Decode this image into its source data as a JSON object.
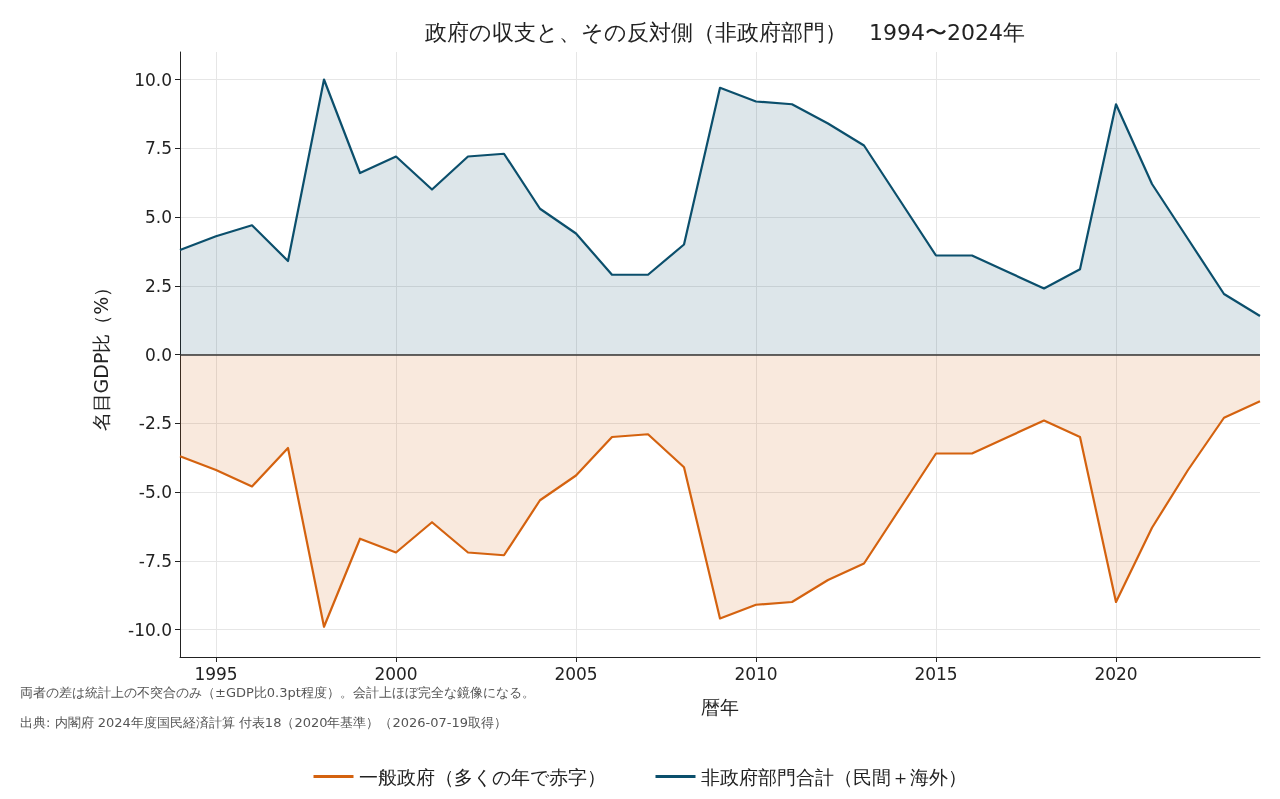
{
  "chart_data": {
    "type": "area",
    "title": "政府の収支と、その反対側（非政府部門）　1994〜2024年",
    "xlabel": "暦年",
    "ylabel": "名目GDP比（%）",
    "x": [
      1994,
      1995,
      1996,
      1997,
      1998,
      1999,
      2000,
      2001,
      2002,
      2003,
      2004,
      2005,
      2006,
      2007,
      2008,
      2009,
      2010,
      2011,
      2012,
      2013,
      2014,
      2015,
      2016,
      2017,
      2018,
      2019,
      2020,
      2021,
      2022,
      2023,
      2024
    ],
    "series": [
      {
        "name": "一般政府（多くの年で赤字）",
        "color": "#d4620f",
        "values": [
          -3.7,
          -4.2,
          -4.8,
          -3.4,
          -9.9,
          -6.7,
          -7.2,
          -6.1,
          -7.2,
          -7.3,
          -5.3,
          -4.4,
          -3.0,
          -2.9,
          -4.1,
          -9.6,
          -9.1,
          -9.0,
          -8.2,
          -7.6,
          -5.6,
          -3.6,
          -3.6,
          -3.0,
          -2.4,
          -3.0,
          -9.0,
          -6.3,
          -4.2,
          -2.3,
          -1.7
        ]
      },
      {
        "name": "非政府部門合計（民間＋海外）",
        "color": "#0b4f6c",
        "values": [
          3.8,
          4.3,
          4.7,
          3.4,
          10.0,
          6.6,
          7.2,
          6.0,
          7.2,
          7.3,
          5.3,
          4.4,
          2.9,
          2.9,
          4.0,
          9.7,
          9.2,
          9.1,
          8.4,
          7.6,
          5.6,
          3.6,
          3.6,
          3.0,
          2.4,
          3.1,
          9.1,
          6.2,
          4.2,
          2.2,
          1.4
        ]
      }
    ],
    "xlim": [
      1994,
      2024
    ],
    "xticks": [
      1995,
      2000,
      2005,
      2010,
      2015,
      2020
    ],
    "ylim": [
      -11,
      11
    ],
    "yticks": [
      {
        "value": -10,
        "label": "-10.0"
      },
      {
        "value": -7.5,
        "label": "-7.5"
      },
      {
        "value": -5,
        "label": "-5.0"
      },
      {
        "value": -2.5,
        "label": "-2.5"
      },
      {
        "value": 0,
        "label": "0.0"
      },
      {
        "value": 2.5,
        "label": "2.5"
      },
      {
        "value": 5,
        "label": "5.0"
      },
      {
        "value": 7.5,
        "label": "7.5"
      },
      {
        "value": 10,
        "label": "10.0"
      }
    ],
    "ref_lines": [
      {
        "axis": "y",
        "value": 0,
        "color": "#333333"
      }
    ],
    "grid": true,
    "legend": "bottom",
    "marker": "none",
    "annotations": [
      "両者の差は統計上の不突合のみ（±GDP比0.3pt程度）。会計上ほぼ完全な鏡像になる。",
      "出典: 内閣府 2024年度国民経済計算 付表18（2020年基準）（2026-07-19取得）"
    ]
  }
}
